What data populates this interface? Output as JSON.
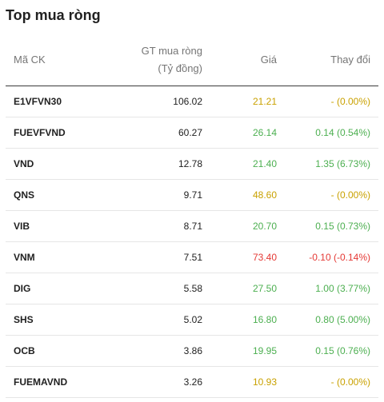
{
  "title": "Top mua ròng",
  "columns": {
    "code": "Mã CK",
    "gt_line1": "GT mua ròng",
    "gt_line2": "(Tỷ đồng)",
    "price": "Giá",
    "change": "Thay đổi"
  },
  "colors": {
    "ref": "#c9a100",
    "up": "#4caf50",
    "down": "#e53935"
  },
  "rows": [
    {
      "code": "E1VFVN30",
      "gt": "106.02",
      "price": "21.21",
      "change": "- (0.00%)",
      "status": "ref"
    },
    {
      "code": "FUEVFVND",
      "gt": "60.27",
      "price": "26.14",
      "change": "0.14 (0.54%)",
      "status": "up"
    },
    {
      "code": "VND",
      "gt": "12.78",
      "price": "21.40",
      "change": "1.35 (6.73%)",
      "status": "up"
    },
    {
      "code": "QNS",
      "gt": "9.71",
      "price": "48.60",
      "change": "- (0.00%)",
      "status": "ref"
    },
    {
      "code": "VIB",
      "gt": "8.71",
      "price": "20.70",
      "change": "0.15 (0.73%)",
      "status": "up"
    },
    {
      "code": "VNM",
      "gt": "7.51",
      "price": "73.40",
      "change": "-0.10 (-0.14%)",
      "status": "down"
    },
    {
      "code": "DIG",
      "gt": "5.58",
      "price": "27.50",
      "change": "1.00 (3.77%)",
      "status": "up"
    },
    {
      "code": "SHS",
      "gt": "5.02",
      "price": "16.80",
      "change": "0.80 (5.00%)",
      "status": "up"
    },
    {
      "code": "OCB",
      "gt": "3.86",
      "price": "19.95",
      "change": "0.15 (0.76%)",
      "status": "up"
    },
    {
      "code": "FUEMAVND",
      "gt": "3.26",
      "price": "10.93",
      "change": "- (0.00%)",
      "status": "ref"
    }
  ]
}
